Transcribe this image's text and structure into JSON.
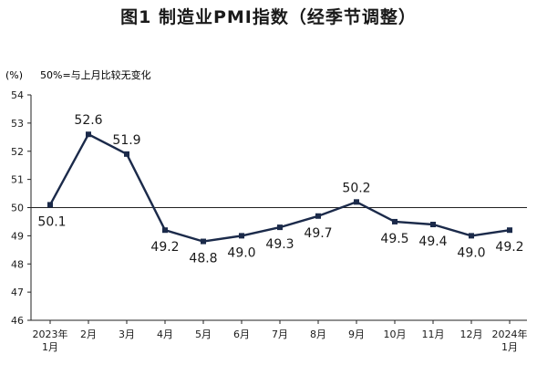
{
  "chart_data": {
    "type": "line",
    "title": "图1 制造业PMI指数（经季节调整）",
    "yunit": "(%)",
    "note": "50%=与上月比较无变化",
    "categories": [
      [
        "2023年",
        "1月"
      ],
      [
        "2月"
      ],
      [
        "3月"
      ],
      [
        "4月"
      ],
      [
        "5月"
      ],
      [
        "6月"
      ],
      [
        "7月"
      ],
      [
        "8月"
      ],
      [
        "9月"
      ],
      [
        "10月"
      ],
      [
        "11月"
      ],
      [
        "12月"
      ],
      [
        "2024年",
        "1月"
      ]
    ],
    "values": [
      50.1,
      52.6,
      51.9,
      49.2,
      48.8,
      49.0,
      49.3,
      49.7,
      50.2,
      49.5,
      49.4,
      49.0,
      49.2
    ],
    "data_labels": [
      "50.1",
      "52.6",
      "51.9",
      "49.2",
      "48.8",
      "49.0",
      "49.3",
      "49.7",
      "50.2",
      "49.5",
      "49.4",
      "49.0",
      "49.2"
    ],
    "ylim": [
      46,
      54
    ],
    "yticks": [
      46,
      47,
      48,
      49,
      50,
      51,
      52,
      53,
      54
    ],
    "reference_line": 50,
    "grid": false,
    "line_color": "#1b2a4a",
    "axis_color": "#222222"
  }
}
